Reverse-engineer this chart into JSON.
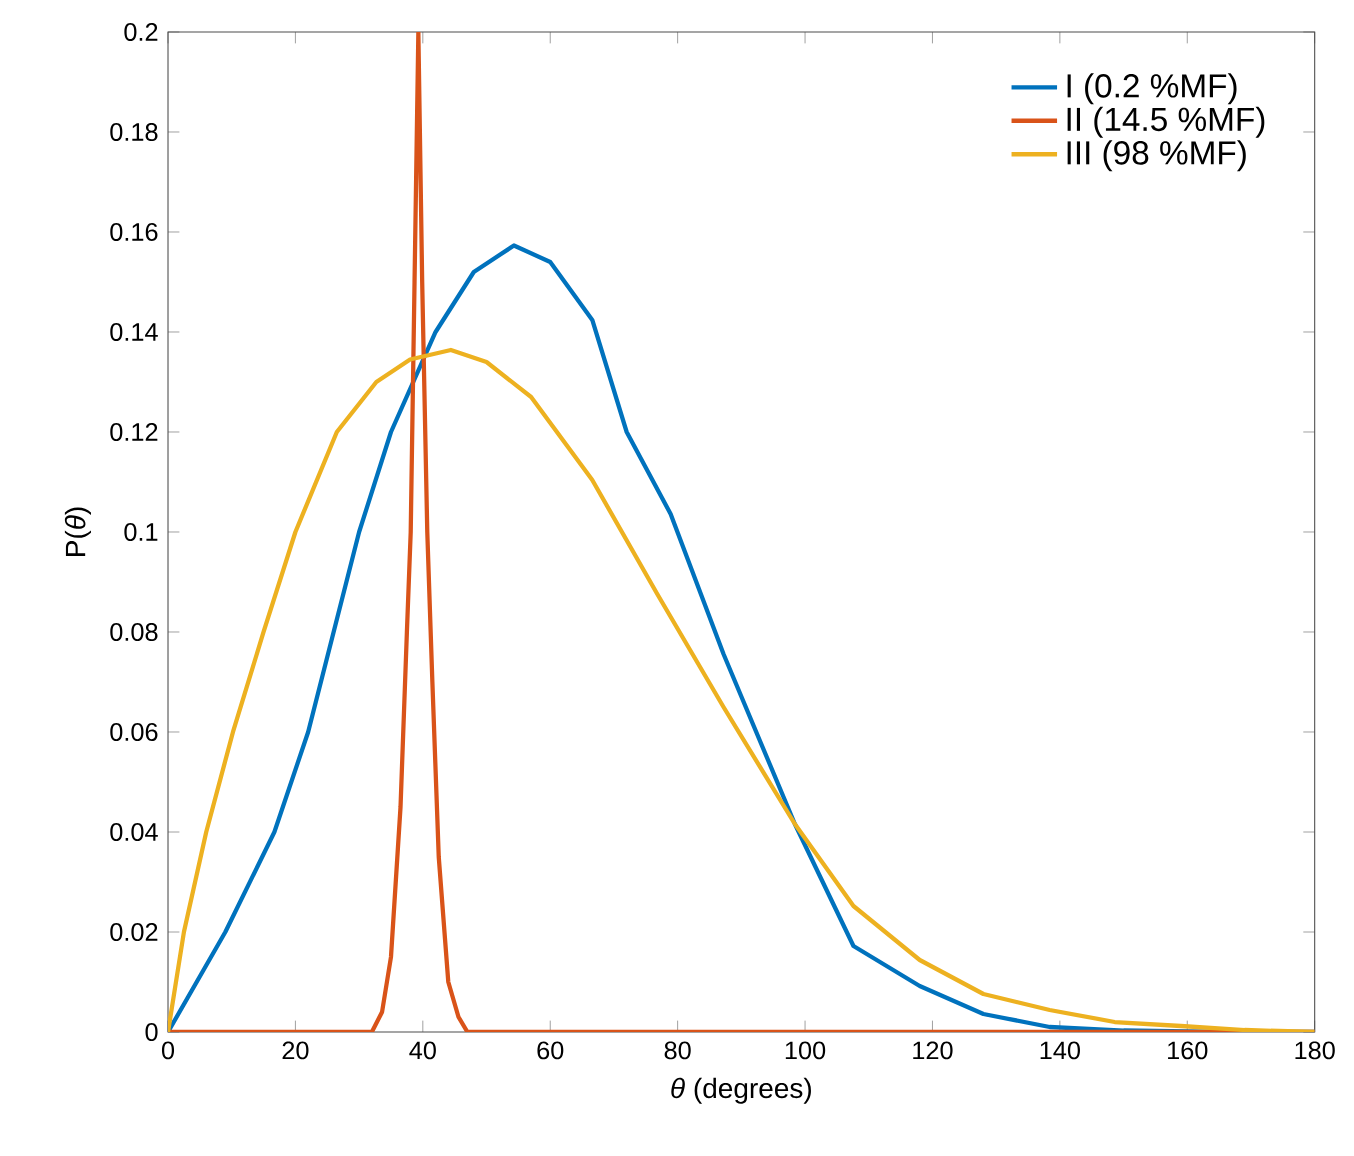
{
  "chart_data": {
    "type": "line",
    "xlabel": "*θ* (degrees)",
    "ylabel": "P(*θ*)",
    "xlim": [
      0,
      180
    ],
    "ylim": [
      0,
      0.2
    ],
    "xticks": [
      0,
      20,
      40,
      60,
      80,
      100,
      120,
      140,
      160,
      180
    ],
    "yticks": [
      0,
      0.02,
      0.04,
      0.06,
      0.08,
      0.1,
      0.12,
      0.14,
      0.16,
      0.18,
      0.2
    ],
    "legend": "top right",
    "grid": false,
    "marker": "none",
    "line_style": "solid",
    "series": [
      {
        "name": "I (0.2 %MF)",
        "color": "#0072bd",
        "x": [
          0,
          9,
          16.7,
          22,
          26,
          30,
          35,
          42,
          48,
          54.3,
          60,
          66.6,
          72,
          78.9,
          87.2,
          98.4,
          107.6,
          118,
          128,
          138.4,
          150,
          165,
          180
        ],
        "values": [
          0,
          0.02,
          0.04,
          0.06,
          0.08,
          0.1,
          0.12,
          0.14,
          0.152,
          0.1573,
          0.154,
          0.1424,
          0.12,
          0.1036,
          0.0756,
          0.0416,
          0.0172,
          0.0092,
          0.0036,
          0.001,
          0.0003,
          0,
          0
        ]
      },
      {
        "name": "II (14.5 %MF)",
        "color": "#d95319",
        "x": [
          0,
          32,
          33.6,
          35,
          36.5,
          37.5,
          38.1,
          38.7,
          39.3,
          39.9,
          40.7,
          41.5,
          42.5,
          44,
          45.6,
          47,
          180
        ],
        "values": [
          0,
          0,
          0.004,
          0.015,
          0.045,
          0.08,
          0.1,
          0.15,
          0.2,
          0.15,
          0.1,
          0.07,
          0.035,
          0.01,
          0.003,
          0,
          0
        ]
      },
      {
        "name": "III (98 %MF)",
        "color": "#edb120",
        "x": [
          0,
          2.5,
          6,
          10.2,
          15,
          20,
          26.5,
          32.7,
          38,
          44.4,
          50,
          57,
          66.6,
          76.8,
          87.2,
          98.4,
          107.6,
          118,
          128,
          138.4,
          148.6,
          159,
          169,
          180
        ],
        "values": [
          0,
          0.02,
          0.04,
          0.06,
          0.08,
          0.1,
          0.12,
          0.13,
          0.1345,
          0.1364,
          0.134,
          0.127,
          0.1104,
          0.0876,
          0.065,
          0.0416,
          0.0252,
          0.0144,
          0.0076,
          0.0044,
          0.002,
          0.0012,
          0.0004,
          0
        ]
      }
    ]
  }
}
